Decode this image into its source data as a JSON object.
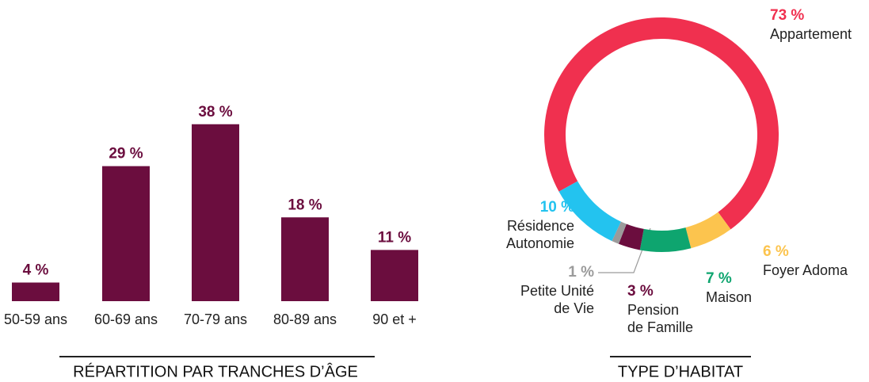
{
  "chart_data": [
    {
      "type": "bar",
      "title": "RÉPARTITION PAR TRANCHES D’ÂGE",
      "categories": [
        "50-59 ans",
        "60-69 ans",
        "70-79 ans",
        "80-89 ans",
        "90 et +"
      ],
      "values": [
        4,
        29,
        38,
        18,
        11
      ],
      "value_labels": [
        "4 %",
        "29 %",
        "38 %",
        "18 %",
        "11 %"
      ],
      "color": "#6b0d3e",
      "ylim": [
        0,
        40
      ]
    },
    {
      "type": "donut",
      "title": "TYPE D’HABITAT",
      "labels": [
        "Appartement",
        "Foyer Adoma",
        "Maison",
        "Pension\nde Famille",
        "Petite Unité\nde Vie",
        "Résidence\nAutonomie"
      ],
      "values": [
        73,
        6,
        7,
        3,
        1,
        10
      ],
      "value_labels": [
        "73 %",
        "6 %",
        "7 %",
        "3 %",
        "1 %",
        "10 %"
      ],
      "colors": [
        "#f0304f",
        "#fcc44e",
        "#0ea56f",
        "#6b0d3e",
        "#9b9b9b",
        "#23c3ef"
      ]
    }
  ]
}
